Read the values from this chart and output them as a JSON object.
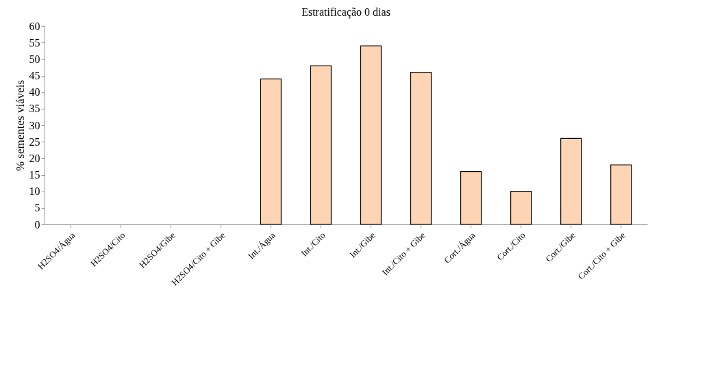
{
  "chart_data": {
    "type": "bar",
    "title": "Estratificação 0 dias",
    "ylabel": "% sementes viáveis",
    "categories": [
      "H2SO4/Água",
      "H2SO4/Cito",
      "H2SO4/Gibe",
      "H2SO4/Cito + Gibe",
      "Int./Água",
      "Int./Cito",
      "Int./Gibe",
      "Int./Cito + Gibe",
      "Cort./Água",
      "Cort./Cito",
      "Cort./Gibe",
      "Cort./Cito + Gibe"
    ],
    "values": [
      0,
      0,
      0,
      0,
      44,
      48,
      54,
      46,
      16,
      10,
      26,
      18
    ],
    "color": "#fdd5b4",
    "ylim": [
      0,
      60
    ],
    "yticks": [
      0,
      5,
      10,
      15,
      20,
      25,
      30,
      35,
      40,
      45,
      50,
      55,
      60
    ],
    "grid": false
  }
}
